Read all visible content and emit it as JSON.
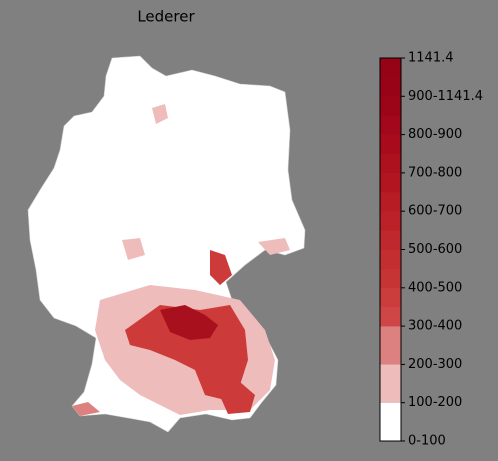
{
  "title": "Lederer",
  "legend": {
    "labels": [
      "0-100",
      "100-200",
      "200-300",
      "300-400",
      "400-500",
      "500-600",
      "600-700",
      "700-800",
      "800-900",
      "900-1141.4",
      "1141.4"
    ]
  }
}
